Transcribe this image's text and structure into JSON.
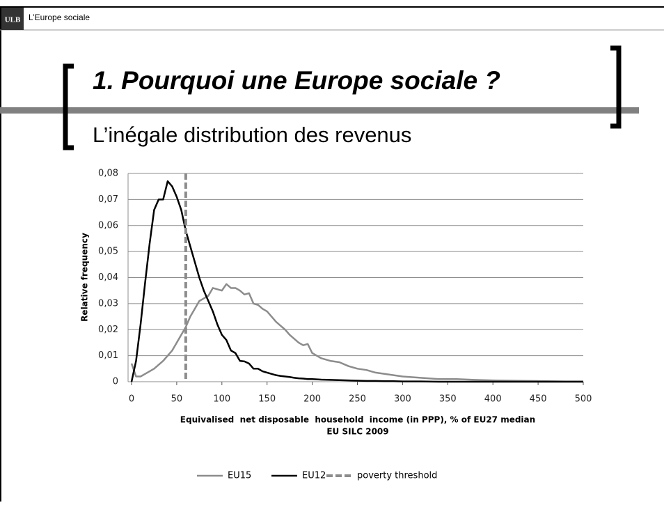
{
  "header": {
    "logo": "ULB",
    "title": "L’Europe sociale"
  },
  "slide": {
    "title": "1. Pourquoi une Europe sociale ?",
    "subtitle": "L’inégale distribution des revenus"
  },
  "chart_data": {
    "type": "line",
    "x_label": "Equivalised  net disposable  household  income (in PPP), % of EU27 median",
    "x_label_2": "EU SILC 2009",
    "y_label": "Relative frequency",
    "x": [
      0,
      5,
      10,
      15,
      20,
      25,
      30,
      35,
      40,
      45,
      50,
      55,
      60,
      65,
      70,
      75,
      80,
      85,
      90,
      95,
      100,
      105,
      110,
      115,
      120,
      125,
      130,
      135,
      140,
      145,
      150,
      155,
      160,
      165,
      170,
      175,
      180,
      185,
      190,
      195,
      200,
      210,
      220,
      230,
      240,
      250,
      260,
      270,
      280,
      290,
      300,
      320,
      340,
      360,
      380,
      400,
      420,
      440,
      460,
      480,
      500
    ],
    "series": [
      {
        "name": "EU15",
        "color": "#8c8c8c",
        "values": [
          0.007,
          0.002,
          0.002,
          0.003,
          0.004,
          0.005,
          0.0065,
          0.008,
          0.01,
          0.012,
          0.015,
          0.018,
          0.021,
          0.025,
          0.028,
          0.031,
          0.032,
          0.033,
          0.036,
          0.0355,
          0.035,
          0.0375,
          0.036,
          0.036,
          0.035,
          0.0335,
          0.034,
          0.03,
          0.0295,
          0.028,
          0.027,
          0.025,
          0.023,
          0.0215,
          0.02,
          0.018,
          0.0165,
          0.015,
          0.014,
          0.0145,
          0.011,
          0.009,
          0.008,
          0.0075,
          0.006,
          0.005,
          0.0045,
          0.0035,
          0.003,
          0.0025,
          0.002,
          0.0015,
          0.001,
          0.001,
          0.0007,
          0.0005,
          0.0004,
          0.0003,
          0.0002,
          0.0001,
          0.0001
        ]
      },
      {
        "name": "EU12",
        "color": "#000000",
        "values": [
          0,
          0.008,
          0.022,
          0.038,
          0.053,
          0.066,
          0.07,
          0.07,
          0.077,
          0.075,
          0.071,
          0.066,
          0.058,
          0.052,
          0.046,
          0.04,
          0.035,
          0.031,
          0.027,
          0.022,
          0.018,
          0.016,
          0.012,
          0.011,
          0.008,
          0.0078,
          0.007,
          0.005,
          0.005,
          0.004,
          0.0035,
          0.003,
          0.0025,
          0.0022,
          0.002,
          0.0018,
          0.0015,
          0.0013,
          0.0012,
          0.001,
          0.001,
          0.0008,
          0.0007,
          0.0006,
          0.0005,
          0.0004,
          0.0003,
          0.0003,
          0.0002,
          0.0002,
          0.0001,
          0.0001,
          0,
          0,
          0,
          0,
          0,
          0,
          0,
          0,
          0
        ]
      }
    ],
    "threshold": {
      "name": "poverty threshold",
      "x": 60,
      "color": "#8c8c8c"
    },
    "xlim": [
      0,
      500
    ],
    "xticks": [
      0,
      50,
      100,
      150,
      200,
      250,
      300,
      350,
      400,
      450,
      500
    ],
    "ylim": [
      0,
      0.08
    ],
    "yticks": [
      0,
      {
        "value": 0.01,
        "label": "0,01"
      },
      {
        "value": 0.02,
        "label": "0,02"
      },
      {
        "value": 0.03,
        "label": "0,03"
      },
      {
        "value": 0.04,
        "label": "0,04"
      },
      {
        "value": 0.05,
        "label": "0,05"
      },
      {
        "value": 0.06,
        "label": "0,06"
      },
      {
        "value": 0.07,
        "label": "0,07"
      },
      {
        "value": 0.08,
        "label": "0,08"
      }
    ],
    "grid": true
  }
}
